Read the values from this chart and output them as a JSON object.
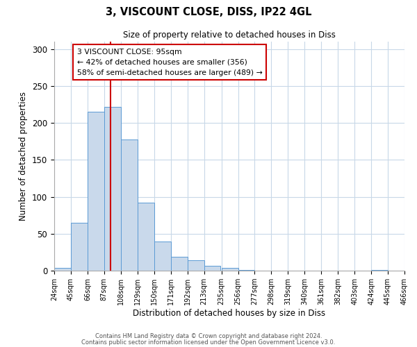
{
  "title": "3, VISCOUNT CLOSE, DISS, IP22 4GL",
  "subtitle": "Size of property relative to detached houses in Diss",
  "xlabel": "Distribution of detached houses by size in Diss",
  "ylabel": "Number of detached properties",
  "bar_values": [
    4,
    65,
    215,
    222,
    178,
    92,
    39,
    19,
    14,
    7,
    4,
    1,
    0,
    0,
    0,
    0,
    0,
    0,
    0,
    1
  ],
  "bin_edges": [
    24,
    45,
    66,
    87,
    108,
    129,
    150,
    171,
    192,
    213,
    235,
    256,
    277,
    298,
    319,
    340,
    361,
    382,
    403,
    424,
    445
  ],
  "bar_color": "#c9d9eb",
  "bar_edge_color": "#5b9bd5",
  "ylim": [
    0,
    310
  ],
  "yticks": [
    0,
    50,
    100,
    150,
    200,
    250,
    300
  ],
  "vline_x": 95,
  "vline_color": "#cc0000",
  "annotation_title": "3 VISCOUNT CLOSE: 95sqm",
  "annotation_line1": "← 42% of detached houses are smaller (356)",
  "annotation_line2": "58% of semi-detached houses are larger (489) →",
  "annotation_box_color": "#cc0000",
  "footer1": "Contains HM Land Registry data © Crown copyright and database right 2024.",
  "footer2": "Contains public sector information licensed under the Open Government Licence v3.0.",
  "background_color": "#ffffff",
  "grid_color": "#c8d8e8"
}
